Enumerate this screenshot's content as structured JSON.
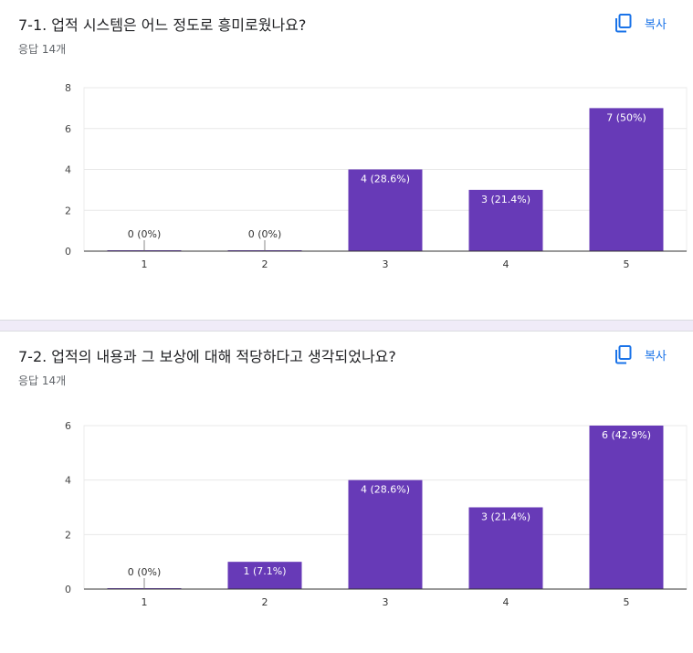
{
  "colors": {
    "accent": "#673ab7",
    "link": "#1a73e8",
    "divider_bg": "#f0ebf8"
  },
  "icons": {
    "copy": "copy-icon"
  },
  "questions": [
    {
      "title": "7-1. 업적 시스템은 어느 정도로 흥미로웠나요?",
      "responses": "응답 14개",
      "copy_label": "복사",
      "chart_data": {
        "type": "bar",
        "categories": [
          "1",
          "2",
          "3",
          "4",
          "5"
        ],
        "values": [
          0,
          0,
          4,
          3,
          7
        ],
        "labels": [
          "0 (0%)",
          "0 (0%)",
          "4 (28.6%)",
          "3 (21.4%)",
          "7 (50%)"
        ],
        "yticks": [
          "0",
          "2",
          "4",
          "6",
          "8"
        ],
        "ylim": [
          0,
          8
        ],
        "grid": true,
        "title": "",
        "xlabel": "",
        "ylabel": ""
      }
    },
    {
      "title": "7-2. 업적의 내용과 그 보상에 대해 적당하다고 생각되었나요?",
      "responses": "응답 14개",
      "copy_label": "복사",
      "chart_data": {
        "type": "bar",
        "categories": [
          "1",
          "2",
          "3",
          "4",
          "5"
        ],
        "values": [
          0,
          1,
          4,
          3,
          6
        ],
        "labels": [
          "0 (0%)",
          "1 (7.1%)",
          "4 (28.6%)",
          "3 (21.4%)",
          "6 (42.9%)"
        ],
        "yticks": [
          "0",
          "2",
          "4",
          "6"
        ],
        "ylim": [
          0,
          6
        ],
        "grid": true,
        "title": "",
        "xlabel": "",
        "ylabel": ""
      }
    }
  ]
}
